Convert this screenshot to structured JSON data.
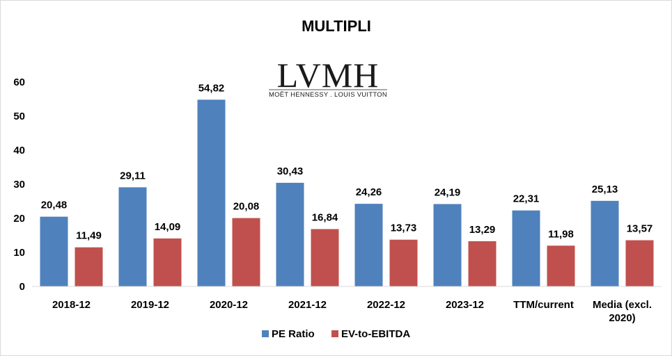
{
  "chart_data": {
    "type": "bar",
    "title": "MULTIPLI",
    "logo": {
      "text": "LVMH",
      "subtext": "MOËT HENNESSY . LOUIS VUITTON"
    },
    "categories": [
      [
        "2018-12"
      ],
      [
        "2019-12"
      ],
      [
        "2020-12"
      ],
      [
        "2021-12"
      ],
      [
        "2022-12"
      ],
      [
        "2023-12"
      ],
      [
        "TTM/current"
      ],
      [
        "Media (excl.",
        "2020)"
      ]
    ],
    "series": [
      {
        "name": "PE Ratio",
        "color": "#4F81BD",
        "values": [
          20.48,
          29.11,
          54.82,
          30.43,
          24.26,
          24.19,
          22.31,
          25.13
        ],
        "labels": [
          "20,48",
          "29,11",
          "54,82",
          "30,43",
          "24,26",
          "24,19",
          "22,31",
          "25,13"
        ]
      },
      {
        "name": "EV-to-EBITDA",
        "color": "#C0504D",
        "values": [
          11.49,
          14.09,
          20.08,
          16.84,
          13.73,
          13.29,
          11.98,
          13.57
        ],
        "labels": [
          "11,49",
          "14,09",
          "20,08",
          "16,84",
          "13,73",
          "13,29",
          "11,98",
          "13,57"
        ]
      }
    ],
    "yticks": [
      0,
      10,
      20,
      30,
      40,
      50,
      60
    ],
    "ylim": [
      0,
      60
    ],
    "xlabel": "",
    "ylabel": "",
    "grid": false,
    "legend_position": "bottom"
  }
}
